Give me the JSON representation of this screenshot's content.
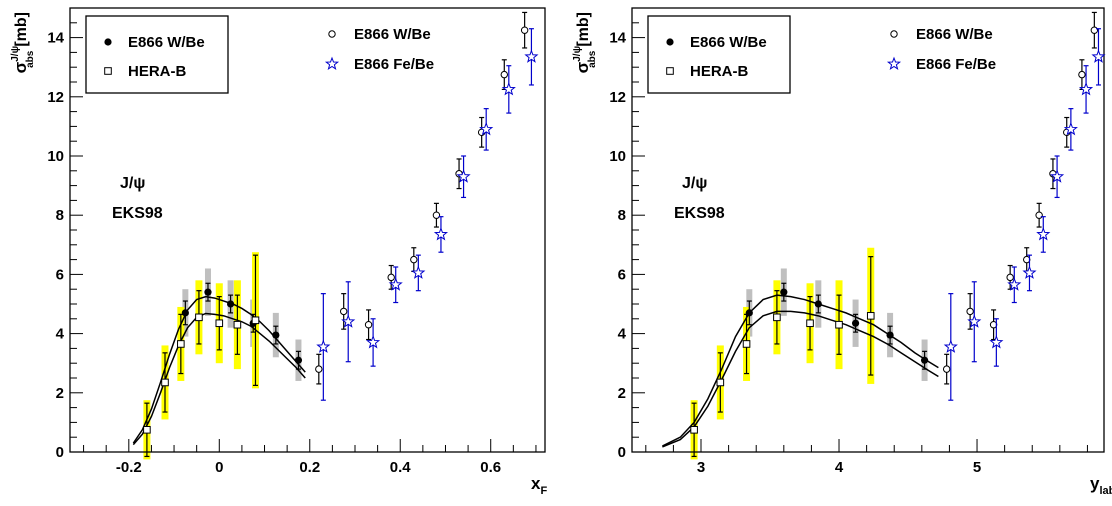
{
  "chart_data": [
    {
      "type": "scatter",
      "id": "left",
      "xlabel": "x",
      "xlabel_sub": "F",
      "ylabel": "σ",
      "ylabel_sup": "J/ψ",
      "ylabel_sub": "abs",
      "ylabel_unit": "[mb]",
      "xlim": [
        -0.33,
        0.72
      ],
      "ylim": [
        0,
        15
      ],
      "xticks": [
        -0.2,
        0,
        0.2,
        0.4,
        0.6
      ],
      "xtick_labels": [
        "-0.2",
        "0",
        "0.2",
        "0.4",
        "0.6"
      ],
      "yticks": [
        0,
        2,
        4,
        6,
        8,
        10,
        12,
        14
      ],
      "ytick_labels": [
        "0",
        "2",
        "4",
        "6",
        "8",
        "10",
        "12",
        "14"
      ],
      "annotations": [
        "J/ψ",
        "EKS98"
      ],
      "legend_box": [
        "E866 W/Be",
        "HERA-B"
      ],
      "legend_free": [
        "E866 W/Be",
        "E866 Fe/Be"
      ],
      "series": [
        {
          "name": "E866 W/Be",
          "marker": "filled-circle",
          "x": [
            -0.075,
            -0.025,
            0.025,
            0.075,
            0.125,
            0.175
          ],
          "y": [
            4.7,
            5.4,
            5.0,
            4.35,
            3.95,
            3.1
          ],
          "err": [
            0.4,
            0.3,
            0.3,
            0.3,
            0.3,
            0.3
          ],
          "syst": [
            0.8,
            0.8,
            0.8,
            0.8,
            0.75,
            0.7
          ]
        },
        {
          "name": "HERA-B",
          "marker": "open-square",
          "x": [
            -0.16,
            -0.12,
            -0.085,
            -0.045,
            0.0,
            0.04,
            0.08
          ],
          "y": [
            0.75,
            2.35,
            3.65,
            4.55,
            4.35,
            4.3,
            4.45
          ],
          "err": [
            0.9,
            1.0,
            1.0,
            0.9,
            0.9,
            1.0,
            2.2
          ],
          "syst": [
            1.0,
            1.25,
            1.25,
            1.25,
            1.35,
            1.5,
            2.3
          ]
        },
        {
          "name": "E866 W/Be",
          "marker": "open-circle",
          "x": [
            0.22,
            0.275,
            0.33,
            0.38,
            0.43,
            0.48,
            0.53,
            0.58,
            0.63,
            0.675
          ],
          "y": [
            2.8,
            4.75,
            4.3,
            5.9,
            6.5,
            8.0,
            9.4,
            10.8,
            12.75,
            14.25
          ],
          "err": [
            0.5,
            0.6,
            0.5,
            0.4,
            0.4,
            0.4,
            0.5,
            0.5,
            0.5,
            0.6
          ]
        },
        {
          "name": "E866 Fe/Be",
          "marker": "open-star",
          "x": [
            0.23,
            0.285,
            0.34,
            0.39,
            0.44,
            0.49,
            0.54,
            0.59,
            0.64,
            0.69
          ],
          "y": [
            3.55,
            4.4,
            3.7,
            5.65,
            6.05,
            7.35,
            9.3,
            10.9,
            12.25,
            13.35
          ],
          "err": [
            1.8,
            1.35,
            0.8,
            0.6,
            0.6,
            0.6,
            0.7,
            0.7,
            0.8,
            0.95
          ]
        }
      ],
      "curves": [
        {
          "x": [
            -0.19,
            -0.17,
            -0.15,
            -0.13,
            -0.11,
            -0.09,
            -0.07,
            -0.05,
            -0.03,
            -0.01,
            0.01,
            0.03,
            0.05,
            0.07,
            0.09,
            0.11,
            0.13,
            0.15,
            0.17,
            0.19
          ],
          "y": [
            0.3,
            0.75,
            1.45,
            2.35,
            3.3,
            4.15,
            4.8,
            5.15,
            5.25,
            5.2,
            5.1,
            5.0,
            4.85,
            4.65,
            4.4,
            4.1,
            3.75,
            3.4,
            3.05,
            2.7
          ]
        },
        {
          "x": [
            -0.19,
            -0.17,
            -0.15,
            -0.13,
            -0.11,
            -0.09,
            -0.07,
            -0.05,
            -0.03,
            -0.01,
            0.01,
            0.03,
            0.05,
            0.07,
            0.09,
            0.11,
            0.13,
            0.15,
            0.17,
            0.19
          ],
          "y": [
            0.25,
            0.6,
            1.2,
            2.0,
            2.85,
            3.6,
            4.2,
            4.55,
            4.68,
            4.65,
            4.6,
            4.5,
            4.4,
            4.25,
            4.0,
            3.75,
            3.45,
            3.15,
            2.85,
            2.5
          ]
        }
      ]
    },
    {
      "type": "scatter",
      "id": "right",
      "xlabel": "y",
      "xlabel_sub": "lab",
      "ylabel": "σ",
      "ylabel_sup": "J/ψ",
      "ylabel_sub": "abs",
      "ylabel_unit": "[mb]",
      "xlim": [
        2.5,
        5.92
      ],
      "ylim": [
        0,
        15
      ],
      "xticks": [
        3,
        4,
        5
      ],
      "xtick_labels": [
        "3",
        "4",
        "5"
      ],
      "yticks": [
        0,
        2,
        4,
        6,
        8,
        10,
        12,
        14
      ],
      "ytick_labels": [
        "0",
        "2",
        "4",
        "6",
        "8",
        "10",
        "12",
        "14"
      ],
      "annotations": [
        "J/ψ",
        "EKS98"
      ],
      "legend_box": [
        "E866 W/Be",
        "HERA-B"
      ],
      "legend_free": [
        "E866 W/Be",
        "E866 Fe/Be"
      ],
      "series": [
        {
          "name": "E866 W/Be",
          "marker": "filled-circle",
          "x": [
            3.35,
            3.6,
            3.85,
            4.12,
            4.37,
            4.62
          ],
          "y": [
            4.7,
            5.4,
            5.0,
            4.35,
            3.95,
            3.1
          ],
          "err": [
            0.4,
            0.3,
            0.3,
            0.3,
            0.3,
            0.3
          ],
          "syst": [
            0.8,
            0.8,
            0.8,
            0.8,
            0.75,
            0.7
          ]
        },
        {
          "name": "HERA-B",
          "marker": "open-square",
          "x": [
            2.95,
            3.14,
            3.33,
            3.55,
            3.79,
            4.0,
            4.23
          ],
          "y": [
            0.75,
            2.35,
            3.65,
            4.55,
            4.35,
            4.3,
            4.6
          ],
          "err": [
            0.9,
            1.0,
            1.0,
            0.9,
            0.9,
            1.0,
            2.0
          ],
          "syst": [
            1.0,
            1.25,
            1.25,
            1.25,
            1.35,
            1.5,
            2.3
          ]
        },
        {
          "name": "E866 W/Be",
          "marker": "open-circle",
          "x": [
            4.78,
            4.95,
            5.12,
            5.24,
            5.36,
            5.45,
            5.55,
            5.65,
            5.76,
            5.85
          ],
          "y": [
            2.8,
            4.75,
            4.3,
            5.9,
            6.5,
            8.0,
            9.4,
            10.8,
            12.75,
            14.25
          ],
          "err": [
            0.5,
            0.6,
            0.5,
            0.4,
            0.4,
            0.4,
            0.5,
            0.5,
            0.5,
            0.6
          ]
        },
        {
          "name": "E866 Fe/Be",
          "marker": "open-star",
          "x": [
            4.81,
            4.98,
            5.14,
            5.27,
            5.38,
            5.48,
            5.58,
            5.68,
            5.79,
            5.88
          ],
          "y": [
            3.55,
            4.4,
            3.7,
            5.65,
            6.05,
            7.35,
            9.3,
            10.9,
            12.25,
            13.35
          ],
          "err": [
            1.8,
            1.35,
            0.8,
            0.6,
            0.6,
            0.6,
            0.7,
            0.7,
            0.8,
            0.95
          ]
        }
      ],
      "curves": [
        {
          "x": [
            2.72,
            2.85,
            2.95,
            3.05,
            3.15,
            3.25,
            3.35,
            3.45,
            3.55,
            3.65,
            3.75,
            3.85,
            3.95,
            4.05,
            4.15,
            4.25,
            4.35,
            4.45,
            4.55,
            4.65,
            4.72
          ],
          "y": [
            0.2,
            0.5,
            1.0,
            1.8,
            2.8,
            3.9,
            4.7,
            5.15,
            5.3,
            5.25,
            5.15,
            5.0,
            4.85,
            4.7,
            4.5,
            4.3,
            4.0,
            3.7,
            3.35,
            3.05,
            2.85
          ]
        },
        {
          "x": [
            2.72,
            2.85,
            2.95,
            3.05,
            3.15,
            3.25,
            3.35,
            3.45,
            3.55,
            3.65,
            3.75,
            3.85,
            3.95,
            4.05,
            4.15,
            4.25,
            4.35,
            4.45,
            4.55,
            4.65,
            4.72
          ],
          "y": [
            0.17,
            0.42,
            0.85,
            1.55,
            2.45,
            3.4,
            4.2,
            4.6,
            4.75,
            4.75,
            4.7,
            4.6,
            4.45,
            4.3,
            4.1,
            3.9,
            3.65,
            3.35,
            3.05,
            2.75,
            2.55
          ]
        }
      ]
    }
  ],
  "colors": {
    "yellow_band": "#ffff00",
    "grey_band": "#bfbfbf",
    "blue": "#0000cc",
    "black": "#000000"
  }
}
